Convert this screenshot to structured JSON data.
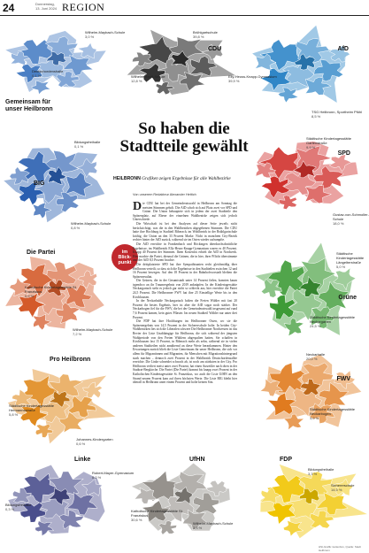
{
  "header": {
    "page_number": "24",
    "date_line1": "Donnerstag,",
    "date_line2": "13. Juni 2024",
    "section": "REGION"
  },
  "headline": "So haben die Stadtteile gewählt",
  "kicker": {
    "label": "HEILBRONN",
    "text": "Grafiken zeigen Ergebnisse für alle Wahlbezirke"
  },
  "byline": "Von unserem Redakteur Alexander Hettich",
  "badge": {
    "line1": "im",
    "line2": "Blick-",
    "line3": "punkt"
  },
  "body_paragraphs": [
    "ie CDU hat bei der Gemeinderatswahl in Heilbronn am Sonntag die meisten Stimmen geholt. Die AfD schob sich auf Platz zwei vor SPD und Grüne. Die Union behauptete sich in jedem der zwei Stadtteile den Spitzenplatz, auf Ebene der einzelnen Wahlbezirke zeigen sich jedoch Unterschiede.",
    "Die Wirtschaft ist bei den Analysen auf dieser Seite jeweils nicht berücksichtigt, was die in den Wahlbezirken abgegebenen Stimmen. Die CDU hatte ihre Hochburg in Stadtteil Biberach, im Wohlbezirk in der Brühlgartschule kräftig, die Union an den 33 Prozent Marke. Nicht in manchem City-Bezirk rechter hinter der AfD zurück, während sie im Osten wieder aufrumpfte.",
    "Die AfD erreichte in Frankenbach und Böckingen überdurchschnittliche Ergebnisse, im Wahlbezirk Elly-Heuss-Knapp-Gymnasium waren es 40 Prozent. Knapp 40 Prozent der Stimmen. Ihren Kostenlos erhielt die AfD in Nordwerk. Hier machte die Partei, diesmal die Grünen, die in hier, ihrer Pflicht überstimmte und der AfD 8,5 Prozent brachte.",
    "Die drittplatzierte SPD hat ihre Sympathisanten recht gleichmäßig über Heilbronn verteilt, so dass sich die Ergebnisse in den Stadtteilen zwischen 12 und 16 Prozent bewegen. Auf den 18 Prozent in der Bahnhofsvorstadt bleiben die Spitzenresultat.",
    "Die Grünen, die in der Gesamtstadt unter 14 Prozent fielen, konnten kaum irgendwo an ihr Traumergebnis von 2019 anknüpfen. In der Kindertagesstätte Neckargartach sieht es jedoch gar nicht so schlecht aus, hier erreichte die Partei 24,5 Prozent. Die Heilbronner FWV hat ihre 25 Einstellige Werte bis in den Kirchhausen.",
    "In der Neckarhalde Neckargartach holten die Freien Wähler mit fast 20 Prozent ihr bestes Ergebnis, hier ist aber die AfD sogar noch stärker. Der Neckarbogen fiel für die FWV, die bei der Gemeinderatswahl insgesamt auf rund 7,6 Prozent kamen, kein gutes Pflaster. Im neuen Stadtteil Wähler nur unter drei Prozent.",
    "Die FDP hat ihre Hochburgen im Heilbronner Osten, wo sie die Spitzenergebnis von 14,5 Prozent in der Sichererschule holte. In beiden City-Wahlbezirken lies sich die Liberalen schwere Die Heilbronner Nordwesten ist das Revier der Liste Unabhängige für Heilbronn, die sich während der jüngsten Wahlperiode von den Freien Wählern abgespalten hatten. Sie schaffen in Kirchhausen fast 15 Prozent, in Biberach mehr als zehn, während sie in vielen anderen Stadtteilen nicht annähernd an diese Werte herankommen. Hinter den Erwartungen zurück blieb die Liste Gemeinsam für unser Heilbronn, die sich vor allem für Migrantinnen und Migranten, für Menschen mit Migrationshintergrund stark machen – dennoch zwei Prozent in der Wahlbezirk Deutschordensallee erreichte. Die Linke schneidet schwach ab, ist noch am stärksten in der City. Pro Heilbronn verliert meist unter zwei Prozent, hat einen Ausreißer nach oben in der Stadtrat-Bergkirche. Die Partei (Die Partei) kommt bis knapp zwei Prozent in der Katholischen Kindertagesstätte St. Franziskus, wo auch die Liste UfHN an den Strand neuem Prozent kam auf ihren höchsten Werte. Die Liste BIG bleibt hier überall in Heilbronn unter einem Prozent und holte keinen Sitz."
  ],
  "credit": "HSt-Grafik: kartenbox, Quelle: Stadt Heilbronn",
  "colors": {
    "gemeinsam": "#4a7fc4",
    "cdu": "#333333",
    "afd": "#2f86c7",
    "big": "#2a5fb0",
    "spd": "#d0312d",
    "partei": "#d45a2a",
    "gruene": "#3e9b37",
    "pro": "#e08a1e",
    "fwv": "#e07b1f",
    "linke": "#4a4e8c",
    "ufhn": "#8a8680",
    "fdp": "#f0c400"
  },
  "maps": [
    {
      "id": "gemeinsam",
      "party": "Gemeinsam für unser Heilbronn",
      "labels": [
        {
          "name": "Wilhelm-Maybach-Schule",
          "value": "3,0 %"
        },
        {
          "name": "Deutschordenshalle",
          "value": "0,1 %"
        }
      ]
    },
    {
      "id": "cdu",
      "party": "CDU",
      "labels": [
        {
          "name": "Brühlgartschule",
          "value": "39,8 %"
        },
        {
          "name": "Wilhelm-Hauff-Schule",
          "value": "12,8 %"
        }
      ]
    },
    {
      "id": "afd",
      "party": "AfD",
      "labels": [
        {
          "name": "Elly-Heuss-Knapp-Gymnasium",
          "value": "39,9 %"
        },
        {
          "name": "TSG Heilbronn, Sportheim Pfühl",
          "value": "8,5 %"
        }
      ]
    },
    {
      "id": "big",
      "party": "BIG",
      "labels": [
        {
          "name": "Bildungsfreihalle",
          "value": "0,1 %"
        },
        {
          "name": "Wilhelm-Maybach-Schule",
          "value": "0,8 %"
        }
      ]
    },
    {
      "id": "spd",
      "party": "SPD",
      "labels": [
        {
          "name": "Städtische Kindertagesstätte Gartenstraße",
          "value": "9,9 %"
        },
        {
          "name": "Gustav-von-Schmoller-Schule",
          "value": "18,0 %"
        }
      ]
    },
    {
      "id": "partei",
      "party": "Die Partei",
      "labels": [
        {
          "name": "Katholische Kindertagesstätte St. Franziskus",
          "value": "0,9 %"
        },
        {
          "name": "Wilhelm-Maybach-Schule",
          "value": "7,2 %"
        }
      ]
    },
    {
      "id": "gruene",
      "party": "Grüne",
      "labels": [
        {
          "name": "Städtische Kindertagesstätte Längelterstraße",
          "value": "5,0 %"
        },
        {
          "name": "Städtische Kindertagesstätte Neckargarten",
          "value": "24,5 %"
        }
      ]
    },
    {
      "id": "pro",
      "party": "Pro Heilbronn",
      "labels": [
        {
          "name": "Städtische Kindertagesstätte Hermannsstraße",
          "value": "5,8 %"
        },
        {
          "name": "Johannes-Kindergarten",
          "value": "0,6 %"
        }
      ]
    },
    {
      "id": "fwv",
      "party": "FWV",
      "labels": [
        {
          "name": "Neckarhalle",
          "value": "20,0 %"
        },
        {
          "name": "Städtische Kindertagesstätte Neckarbogen",
          "value": "3,0 %"
        }
      ]
    },
    {
      "id": "linke",
      "party": "Linke",
      "labels": [
        {
          "name": "Robert-Mayer-Gymnasium",
          "value": "8,2 %"
        },
        {
          "name": "Bildungsfreihalle",
          "value": "0,3 %"
        }
      ]
    },
    {
      "id": "ufhn",
      "party": "UfHN",
      "labels": [
        {
          "name": "Katholische Kindertagesstätte St. Franziskus",
          "value": "30,6 %"
        },
        {
          "name": "Wilhelm-Maybach-Schule",
          "value": "3,5 %"
        }
      ]
    },
    {
      "id": "fdp",
      "party": "FDP",
      "labels": [
        {
          "name": "Bildungsfreihalle",
          "value": "3,3 %"
        },
        {
          "name": "Sichererschule",
          "value": "14,5 %"
        }
      ]
    }
  ]
}
